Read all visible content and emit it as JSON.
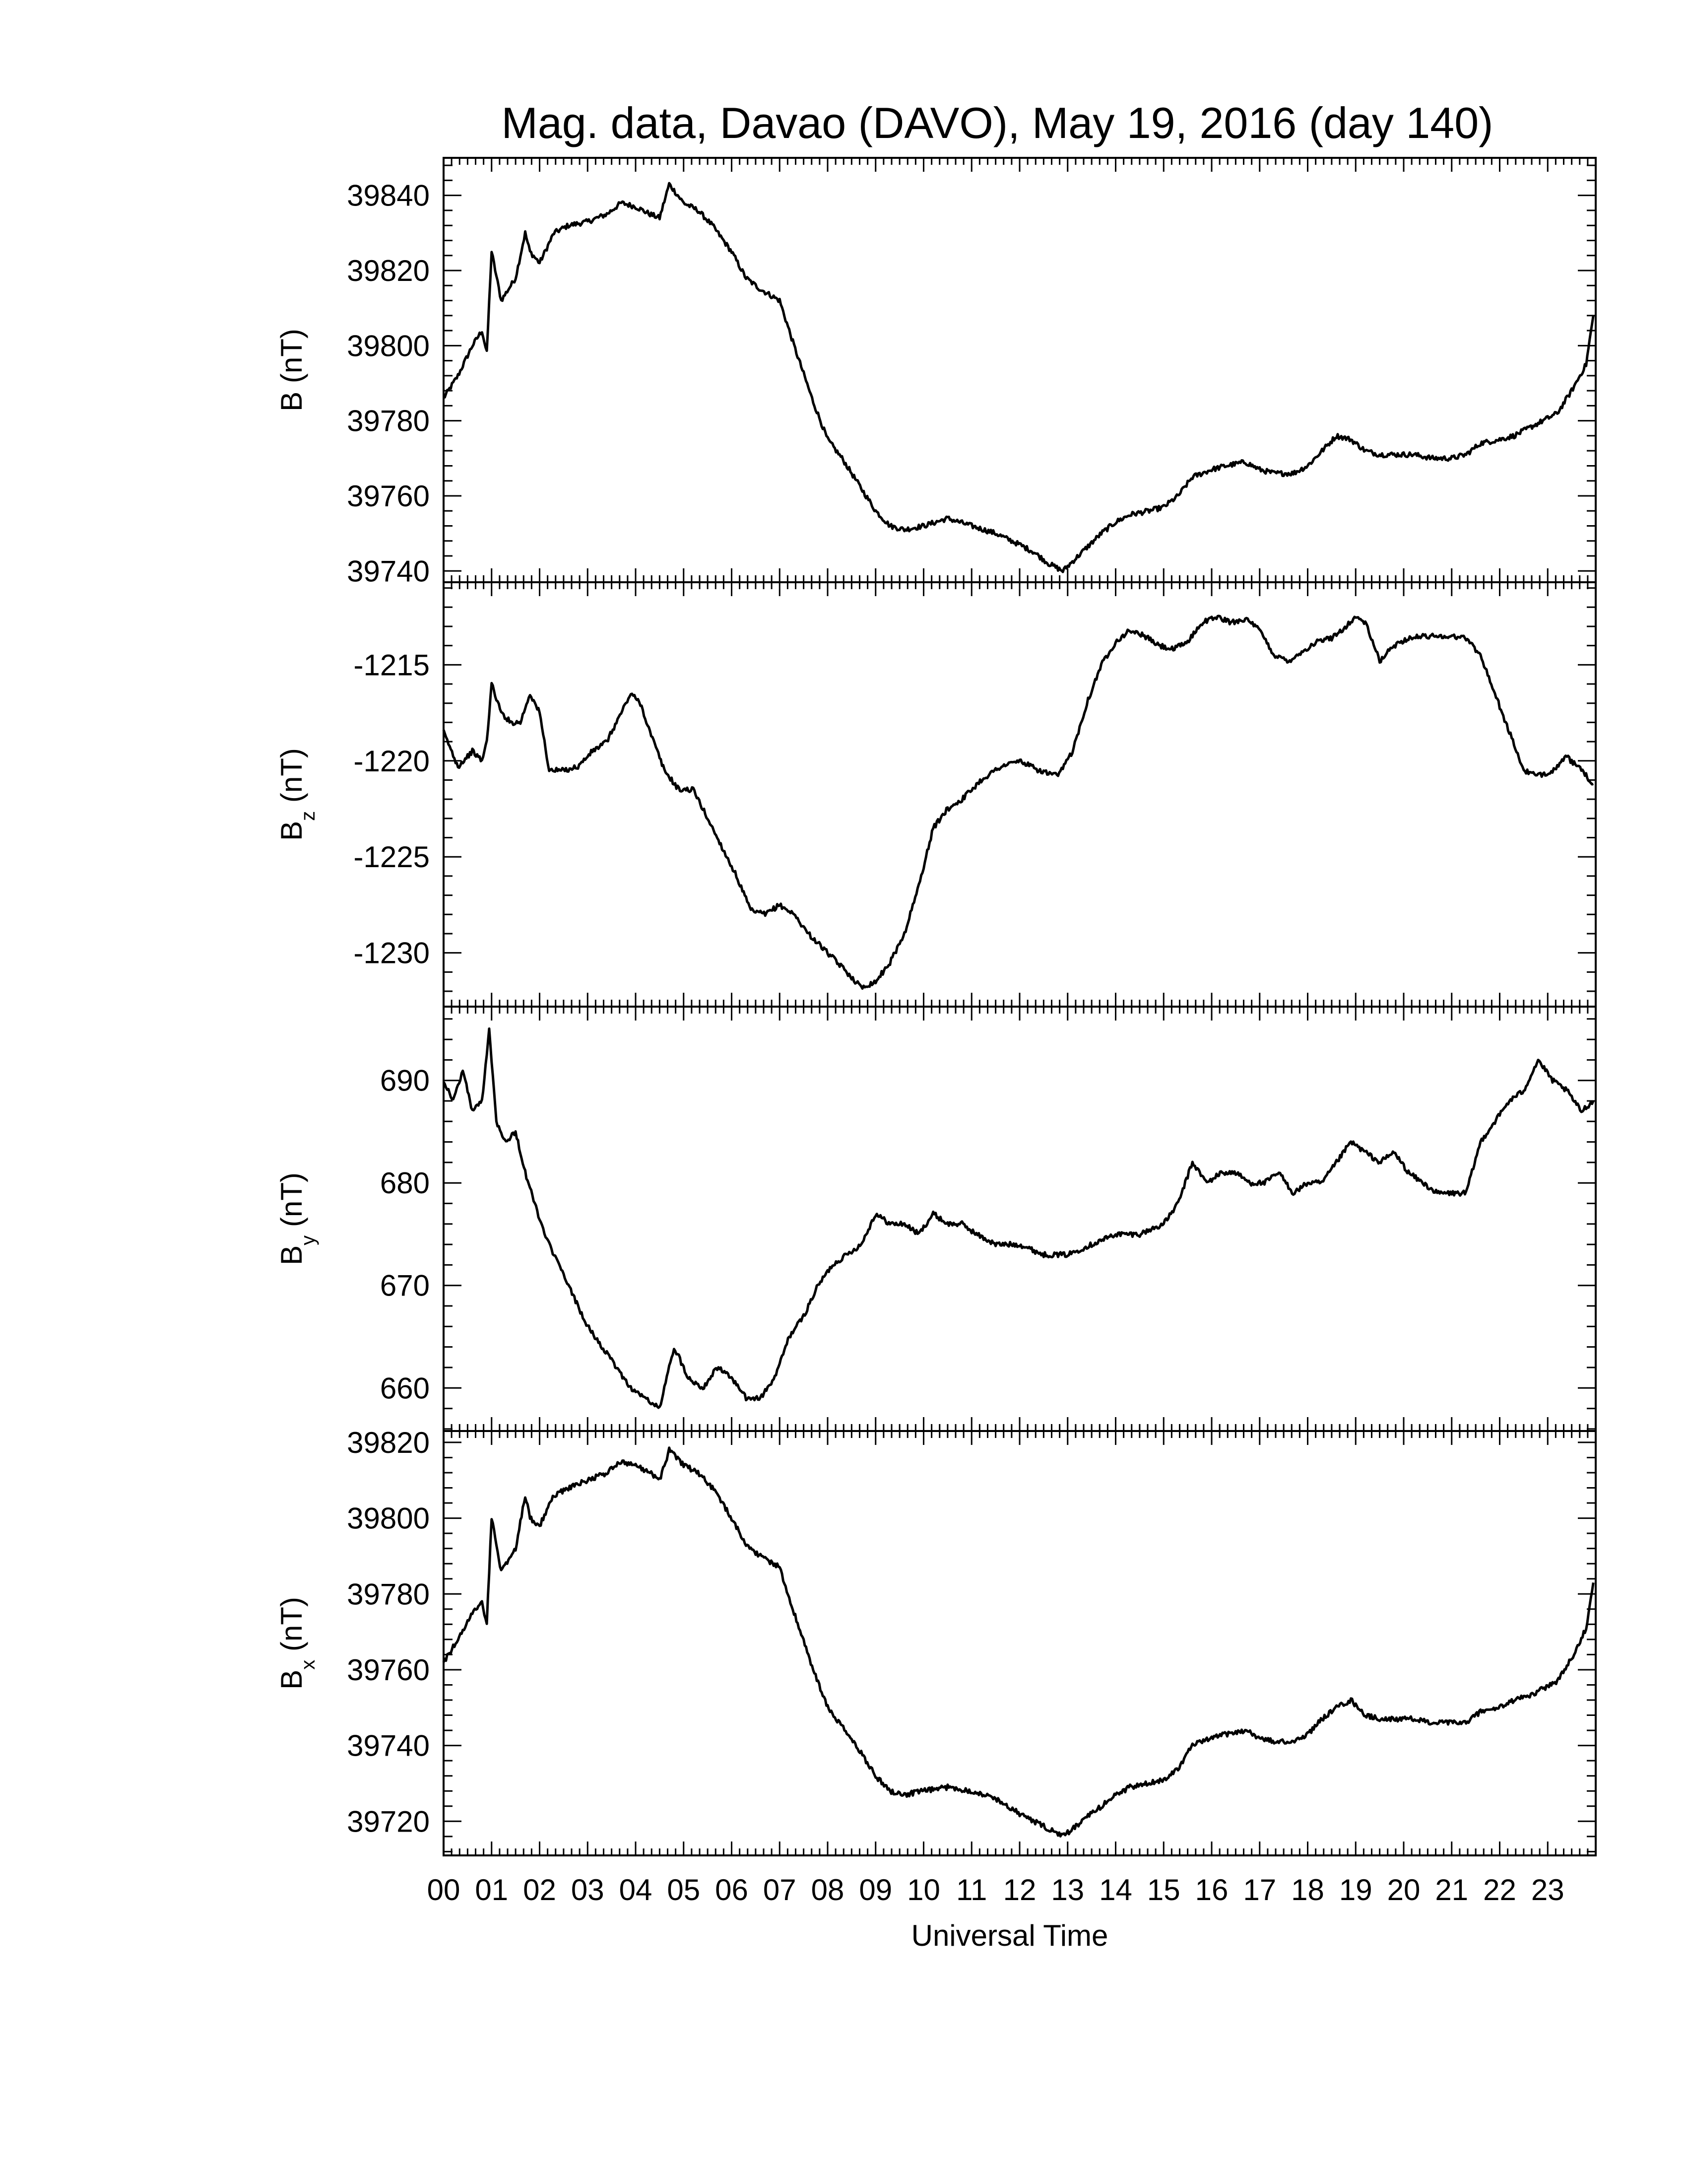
{
  "figure": {
    "title": "Mag. data, Davao (DAVO), May 19, 2016 (day 140)",
    "xlabel": "Universal Time",
    "x_tick_labels": [
      "00",
      "01",
      "02",
      "03",
      "04",
      "05",
      "06",
      "07",
      "08",
      "09",
      "10",
      "11",
      "12",
      "13",
      "14",
      "15",
      "16",
      "17",
      "18",
      "19",
      "20",
      "21",
      "22",
      "23"
    ]
  },
  "chart_data": [
    {
      "type": "line",
      "ylabel_main": "B",
      "ylabel_sub": "",
      "ylabel_unit": " (nT)",
      "ylim": [
        39737,
        39850
      ],
      "y_ticks": [
        39740,
        39760,
        39780,
        39800,
        39820,
        39840
      ],
      "x": [
        0,
        0.3,
        0.6,
        0.8,
        0.9,
        1.0,
        1.2,
        1.5,
        1.7,
        1.8,
        2.0,
        2.3,
        2.6,
        3.0,
        3.4,
        3.7,
        4.0,
        4.3,
        4.5,
        4.7,
        5.0,
        5.3,
        5.6,
        6.0,
        6.3,
        6.6,
        7.0,
        7.3,
        7.7,
        8.0,
        8.3,
        8.7,
        9.0,
        9.3,
        9.6,
        10.0,
        10.5,
        11.0,
        11.5,
        12.0,
        12.3,
        12.6,
        12.9,
        13.3,
        13.7,
        14.0,
        14.3,
        14.7,
        15.0,
        15.3,
        15.6,
        16.0,
        16.3,
        16.7,
        17.0,
        17.3,
        17.7,
        18.0,
        18.3,
        18.6,
        18.9,
        19.2,
        19.5,
        19.8,
        20.2,
        20.6,
        21.0,
        21.3,
        21.6,
        22.0,
        22.3,
        22.6,
        22.9,
        23.2,
        23.5,
        23.8,
        23.95
      ],
      "values": [
        39786,
        39792,
        39800,
        39804,
        39798,
        39825,
        39812,
        39818,
        39830,
        39825,
        39822,
        39830,
        39832,
        39833,
        39835,
        39838,
        39837,
        39835,
        39834,
        39843,
        39838,
        39836,
        39832,
        39825,
        39818,
        39815,
        39812,
        39800,
        39785,
        39775,
        39770,
        39762,
        39756,
        39752,
        39751,
        39752,
        39754,
        39752,
        39750,
        39747,
        39745,
        39742,
        39740,
        39745,
        39750,
        39753,
        39755,
        39756,
        39757,
        39760,
        39765,
        39767,
        39768,
        39769,
        39767,
        39766,
        39766,
        39768,
        39772,
        39776,
        39775,
        39772,
        39771,
        39771,
        39771,
        39770,
        39770,
        39771,
        39774,
        39775,
        39776,
        39778,
        39780,
        39782,
        39788,
        39795,
        39808
      ]
    },
    {
      "type": "line",
      "ylabel_main": "B",
      "ylabel_sub": "z",
      "ylabel_unit": " (nT)",
      "ylim": [
        -1232.8,
        -1210.7
      ],
      "y_ticks": [
        -1230,
        -1225,
        -1220,
        -1215
      ],
      "x": [
        0,
        0.3,
        0.6,
        0.8,
        0.9,
        1.0,
        1.2,
        1.4,
        1.6,
        1.8,
        2.0,
        2.2,
        2.5,
        2.8,
        3.1,
        3.4,
        3.7,
        3.9,
        4.1,
        4.3,
        4.6,
        4.9,
        5.2,
        5.5,
        5.8,
        6.1,
        6.4,
        6.7,
        7.0,
        7.3,
        7.6,
        8.0,
        8.4,
        8.7,
        9.0,
        9.3,
        9.6,
        9.9,
        10.2,
        10.5,
        10.8,
        11.2,
        11.6,
        12.0,
        12.4,
        12.8,
        13.1,
        13.4,
        13.7,
        14.0,
        14.3,
        14.6,
        14.9,
        15.2,
        15.5,
        15.8,
        16.1,
        16.4,
        16.7,
        17.0,
        17.3,
        17.6,
        17.9,
        18.2,
        18.5,
        18.8,
        19.0,
        19.2,
        19.5,
        19.8,
        20.1,
        20.5,
        20.9,
        21.3,
        21.6,
        21.9,
        22.2,
        22.5,
        22.8,
        23.1,
        23.4,
        23.7,
        23.95
      ],
      "values": [
        -1218.5,
        -1220.3,
        -1219.5,
        -1220.0,
        -1219.0,
        -1216.0,
        -1217.5,
        -1218.0,
        -1218.0,
        -1216.5,
        -1217.5,
        -1220.5,
        -1220.5,
        -1220.3,
        -1219.5,
        -1219.0,
        -1217.5,
        -1216.5,
        -1217.0,
        -1218.5,
        -1220.5,
        -1221.5,
        -1221.5,
        -1223.0,
        -1224.5,
        -1226.0,
        -1227.8,
        -1228.0,
        -1227.5,
        -1228.0,
        -1229.0,
        -1230.0,
        -1231.0,
        -1231.8,
        -1231.5,
        -1230.5,
        -1229.0,
        -1226.5,
        -1223.5,
        -1222.5,
        -1222.0,
        -1221.0,
        -1220.3,
        -1220.0,
        -1220.5,
        -1220.8,
        -1219.5,
        -1217.0,
        -1215.0,
        -1213.8,
        -1213.2,
        -1213.5,
        -1214.0,
        -1214.2,
        -1213.8,
        -1212.8,
        -1212.5,
        -1212.8,
        -1212.6,
        -1213.2,
        -1214.5,
        -1214.8,
        -1214.3,
        -1213.8,
        -1213.6,
        -1213.0,
        -1212.5,
        -1212.8,
        -1214.8,
        -1214.0,
        -1213.6,
        -1213.5,
        -1213.5,
        -1213.6,
        -1214.5,
        -1216.5,
        -1218.5,
        -1220.5,
        -1220.8,
        -1220.5,
        -1219.8,
        -1220.5,
        -1221.2
      ]
    },
    {
      "type": "line",
      "ylabel_main": "B",
      "ylabel_sub": "y",
      "ylabel_unit": " (nT)",
      "ylim": [
        655.8,
        697.2
      ],
      "y_ticks": [
        660,
        670,
        680,
        690
      ],
      "x": [
        0,
        0.2,
        0.4,
        0.6,
        0.8,
        0.95,
        1.1,
        1.3,
        1.5,
        1.7,
        1.9,
        2.1,
        2.4,
        2.7,
        3.0,
        3.3,
        3.6,
        3.9,
        4.2,
        4.5,
        4.8,
        5.1,
        5.4,
        5.7,
        6.0,
        6.3,
        6.6,
        6.9,
        7.2,
        7.5,
        7.8,
        8.1,
        8.4,
        8.7,
        9.0,
        9.3,
        9.6,
        9.9,
        10.2,
        10.5,
        10.8,
        11.1,
        11.5,
        12.0,
        12.5,
        13.0,
        13.5,
        14.0,
        14.5,
        15.0,
        15.3,
        15.6,
        15.9,
        16.2,
        16.5,
        16.8,
        17.1,
        17.4,
        17.7,
        18.0,
        18.3,
        18.6,
        18.9,
        19.2,
        19.5,
        19.8,
        20.1,
        20.4,
        20.7,
        21.0,
        21.3,
        21.6,
        21.9,
        22.2,
        22.5,
        22.8,
        23.1,
        23.4,
        23.7,
        23.95
      ],
      "values": [
        690,
        688,
        691,
        687,
        688,
        695,
        686,
        684,
        685,
        681,
        678,
        675,
        672,
        669,
        666,
        664,
        662,
        660,
        659,
        658,
        664,
        661,
        660,
        662,
        661,
        659,
        659,
        661,
        665,
        667,
        670,
        672,
        673,
        674,
        677,
        676,
        676,
        675,
        677,
        676,
        676,
        675,
        674,
        674,
        673,
        673,
        674,
        675,
        675,
        676,
        678,
        682,
        680,
        681,
        681,
        680,
        680,
        681,
        679,
        680,
        680,
        682,
        684,
        683,
        682,
        683,
        681,
        680,
        679,
        679,
        679,
        684,
        686,
        688,
        689,
        692,
        690,
        689,
        687,
        688
      ]
    },
    {
      "type": "line",
      "ylabel_main": "B",
      "ylabel_sub": "x",
      "ylabel_unit": " (nT)",
      "ylim": [
        39711,
        39823
      ],
      "y_ticks": [
        39720,
        39740,
        39760,
        39780,
        39800,
        39820
      ],
      "x": [
        0,
        0.3,
        0.6,
        0.8,
        0.9,
        1.0,
        1.2,
        1.5,
        1.7,
        1.8,
        2.0,
        2.3,
        2.6,
        3.0,
        3.4,
        3.7,
        4.0,
        4.3,
        4.5,
        4.7,
        5.0,
        5.3,
        5.6,
        6.0,
        6.3,
        6.6,
        7.0,
        7.3,
        7.7,
        8.0,
        8.3,
        8.7,
        9.0,
        9.3,
        9.6,
        10.0,
        10.5,
        11.0,
        11.5,
        12.0,
        12.3,
        12.6,
        12.9,
        13.3,
        13.7,
        14.0,
        14.3,
        14.7,
        15.0,
        15.3,
        15.6,
        16.0,
        16.3,
        16.7,
        17.0,
        17.3,
        17.7,
        18.0,
        18.3,
        18.6,
        18.9,
        19.2,
        19.5,
        19.8,
        20.2,
        20.6,
        21.0,
        21.3,
        21.6,
        22.0,
        22.3,
        22.6,
        22.9,
        23.2,
        23.5,
        23.8,
        23.95
      ],
      "values": [
        39762,
        39768,
        39775,
        39778,
        39772,
        39800,
        39786,
        39792,
        39806,
        39800,
        39798,
        39806,
        39808,
        39810,
        39812,
        39815,
        39814,
        39812,
        39810,
        39818,
        39814,
        39812,
        39808,
        39800,
        39793,
        39790,
        39787,
        39775,
        39760,
        39750,
        39745,
        39738,
        39732,
        39728,
        39727,
        39728,
        39729,
        39728,
        39726,
        39722,
        39720,
        39718,
        39716,
        39720,
        39724,
        39727,
        39729,
        39730,
        39731,
        39734,
        39740,
        39742,
        39743,
        39744,
        39742,
        39741,
        39741,
        39743,
        39747,
        39750,
        39752,
        39748,
        39747,
        39747,
        39747,
        39746,
        39746,
        39746,
        39749,
        39750,
        39752,
        39753,
        39755,
        39757,
        39763,
        39771,
        39783
      ]
    }
  ]
}
